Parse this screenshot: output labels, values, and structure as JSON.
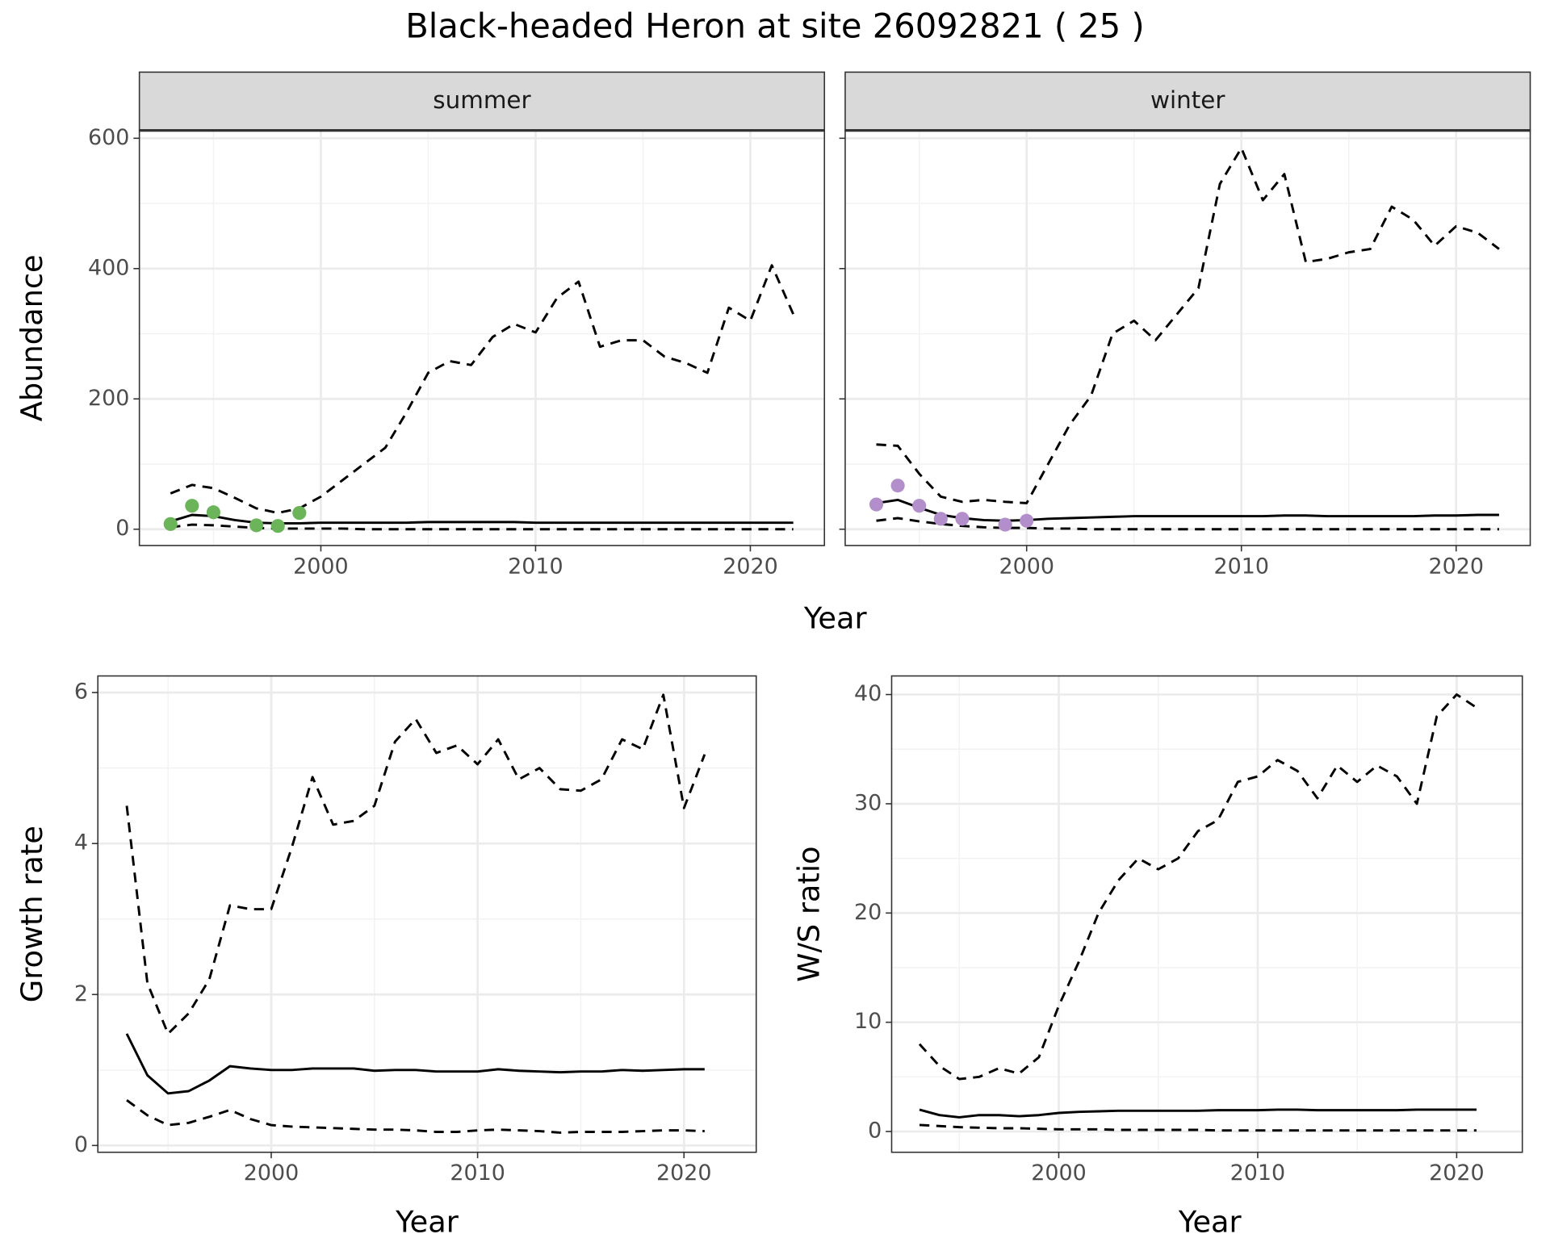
{
  "title": "Black-headed Heron at site 26092821 ( 25 )",
  "chart_data": [
    {
      "type": "line",
      "strip": "summer",
      "xlabel": "Year",
      "ylabel": "Abundance",
      "ytick_labels": true,
      "grid": true,
      "xlim": [
        1991.55,
        2023.45
      ],
      "xticks": [
        2000,
        2010,
        2020
      ],
      "ylim": [
        -25,
        612
      ],
      "yticks": [
        0,
        200,
        400,
        600
      ],
      "x": [
        1993,
        1994,
        1995,
        1996,
        1997,
        1998,
        1999,
        2000,
        2001,
        2002,
        2003,
        2004,
        2005,
        2006,
        2007,
        2008,
        2009,
        2010,
        2011,
        2012,
        2013,
        2014,
        2015,
        2016,
        2017,
        2018,
        2019,
        2020,
        2021,
        2022
      ],
      "series": [
        {
          "color": "#000000",
          "dash": true,
          "values": [
            55,
            68,
            63,
            48,
            32,
            25,
            32,
            50,
            75,
            100,
            125,
            180,
            240,
            258,
            252,
            295,
            315,
            302,
            355,
            380,
            280,
            290,
            290,
            265,
            255,
            240,
            340,
            320,
            405,
            330
          ]
        },
        {
          "color": "#000000",
          "dash": false,
          "values": [
            12,
            22,
            20,
            14,
            10,
            9,
            9,
            10,
            10,
            10,
            10,
            10,
            11,
            11,
            11,
            11,
            11,
            10,
            10,
            10,
            10,
            10,
            10,
            10,
            10,
            10,
            10,
            10,
            10,
            10
          ]
        },
        {
          "color": "#000000",
          "dash": true,
          "values": [
            3,
            7,
            6,
            4,
            2,
            1,
            1,
            1,
            1,
            0,
            0,
            0,
            0,
            0,
            0,
            0,
            0,
            0,
            0,
            0,
            0,
            0,
            0,
            0,
            0,
            0,
            0,
            0,
            0,
            0
          ]
        }
      ],
      "points": {
        "color": "#6bb459",
        "x": [
          1993,
          1994,
          1995,
          1997,
          1998,
          1999
        ],
        "values": [
          8,
          36,
          26,
          6,
          5,
          25
        ]
      }
    },
    {
      "type": "line",
      "strip": "winter",
      "ytick_labels": false,
      "grid": true,
      "xlim": [
        1991.55,
        2023.45
      ],
      "xticks": [
        2000,
        2010,
        2020
      ],
      "ylim": [
        -25,
        612
      ],
      "yticks": [
        0,
        200,
        400,
        600
      ],
      "x": [
        1993,
        1994,
        1995,
        1996,
        1997,
        1998,
        1999,
        2000,
        2001,
        2002,
        2003,
        2004,
        2005,
        2006,
        2007,
        2008,
        2009,
        2010,
        2011,
        2012,
        2013,
        2014,
        2015,
        2016,
        2017,
        2018,
        2019,
        2020,
        2021,
        2022
      ],
      "series": [
        {
          "color": "#000000",
          "dash": true,
          "values": [
            130,
            128,
            85,
            50,
            42,
            45,
            42,
            40,
            100,
            160,
            205,
            300,
            320,
            290,
            330,
            370,
            530,
            585,
            505,
            545,
            410,
            415,
            425,
            430,
            495,
            475,
            435,
            465,
            455,
            430
          ]
        },
        {
          "color": "#000000",
          "dash": false,
          "values": [
            40,
            45,
            33,
            22,
            17,
            14,
            13,
            14,
            16,
            17,
            18,
            19,
            20,
            20,
            20,
            20,
            20,
            20,
            20,
            21,
            21,
            20,
            20,
            20,
            20,
            20,
            21,
            21,
            22,
            22
          ]
        },
        {
          "color": "#000000",
          "dash": true,
          "values": [
            13,
            17,
            12,
            8,
            5,
            3,
            2,
            2,
            1,
            1,
            0,
            0,
            0,
            0,
            0,
            0,
            0,
            0,
            0,
            0,
            0,
            0,
            0,
            0,
            0,
            0,
            0,
            0,
            0,
            0
          ]
        }
      ],
      "points": {
        "color": "#b28ecb",
        "x": [
          1993,
          1994,
          1995,
          1996,
          1997,
          1999,
          2000
        ],
        "values": [
          38,
          67,
          36,
          16,
          16,
          7,
          13
        ]
      }
    },
    {
      "type": "line",
      "xlabel": "Year",
      "ylabel": "Growth rate",
      "ytick_labels": true,
      "grid": true,
      "xlim": [
        1991.6,
        2023.5
      ],
      "xticks": [
        2000,
        2010,
        2020
      ],
      "ylim": [
        -0.09,
        6.22
      ],
      "yticks": [
        0,
        2,
        4,
        6
      ],
      "x": [
        1993,
        1994,
        1995,
        1996,
        1997,
        1998,
        1999,
        2000,
        2001,
        2002,
        2003,
        2004,
        2005,
        2006,
        2007,
        2008,
        2009,
        2010,
        2011,
        2012,
        2013,
        2014,
        2015,
        2016,
        2017,
        2018,
        2019,
        2020,
        2021
      ],
      "series": [
        {
          "color": "#000000",
          "dash": true,
          "values": [
            4.5,
            2.15,
            1.48,
            1.75,
            2.2,
            3.18,
            3.13,
            3.13,
            3.95,
            4.88,
            4.25,
            4.3,
            4.5,
            5.35,
            5.65,
            5.2,
            5.3,
            5.05,
            5.38,
            4.85,
            5.0,
            4.72,
            4.7,
            4.85,
            5.38,
            5.25,
            5.97,
            4.47,
            5.18
          ]
        },
        {
          "color": "#000000",
          "dash": false,
          "values": [
            1.48,
            0.93,
            0.69,
            0.72,
            0.86,
            1.05,
            1.02,
            1.0,
            1.0,
            1.02,
            1.02,
            1.02,
            0.99,
            1.0,
            1.0,
            0.98,
            0.98,
            0.98,
            1.01,
            0.99,
            0.98,
            0.97,
            0.98,
            0.98,
            1.0,
            0.99,
            1.0,
            1.01,
            1.01
          ]
        },
        {
          "color": "#000000",
          "dash": true,
          "values": [
            0.6,
            0.4,
            0.27,
            0.3,
            0.38,
            0.47,
            0.35,
            0.27,
            0.25,
            0.24,
            0.23,
            0.22,
            0.21,
            0.21,
            0.2,
            0.18,
            0.18,
            0.2,
            0.21,
            0.2,
            0.19,
            0.17,
            0.18,
            0.18,
            0.18,
            0.19,
            0.2,
            0.2,
            0.19
          ]
        }
      ]
    },
    {
      "type": "line",
      "xlabel": "Year",
      "ylabel": "W/S ratio",
      "ytick_labels": true,
      "grid": true,
      "xlim": [
        1991.6,
        2023.3
      ],
      "xticks": [
        2000,
        2010,
        2020
      ],
      "ylim": [
        -1.9,
        41.7
      ],
      "yticks": [
        0,
        10,
        20,
        30,
        40
      ],
      "x": [
        1993,
        1994,
        1995,
        1996,
        1997,
        1998,
        1999,
        2000,
        2001,
        2002,
        2003,
        2004,
        2005,
        2006,
        2007,
        2008,
        2009,
        2010,
        2011,
        2012,
        2013,
        2014,
        2015,
        2016,
        2017,
        2018,
        2019,
        2020,
        2021
      ],
      "series": [
        {
          "color": "#000000",
          "dash": true,
          "values": [
            8,
            6,
            4.8,
            5,
            5.8,
            5.3,
            6.8,
            11.5,
            15.5,
            20,
            23,
            25,
            24,
            25,
            27.5,
            28.5,
            32,
            32.5,
            34,
            33,
            30.5,
            33.5,
            32,
            33.5,
            32.5,
            30,
            38,
            40,
            38.8
          ]
        },
        {
          "color": "#000000",
          "dash": false,
          "values": [
            2.0,
            1.5,
            1.3,
            1.5,
            1.5,
            1.4,
            1.5,
            1.7,
            1.8,
            1.85,
            1.9,
            1.9,
            1.9,
            1.9,
            1.9,
            1.95,
            1.95,
            1.95,
            2.0,
            2.0,
            1.95,
            1.95,
            1.95,
            1.95,
            1.95,
            2.0,
            2.0,
            2.0,
            2.0
          ]
        },
        {
          "color": "#000000",
          "dash": true,
          "values": [
            0.6,
            0.5,
            0.4,
            0.35,
            0.3,
            0.3,
            0.25,
            0.2,
            0.2,
            0.2,
            0.15,
            0.15,
            0.15,
            0.15,
            0.15,
            0.1,
            0.1,
            0.1,
            0.1,
            0.1,
            0.1,
            0.1,
            0.1,
            0.1,
            0.1,
            0.1,
            0.1,
            0.1,
            0.1
          ]
        }
      ]
    }
  ]
}
